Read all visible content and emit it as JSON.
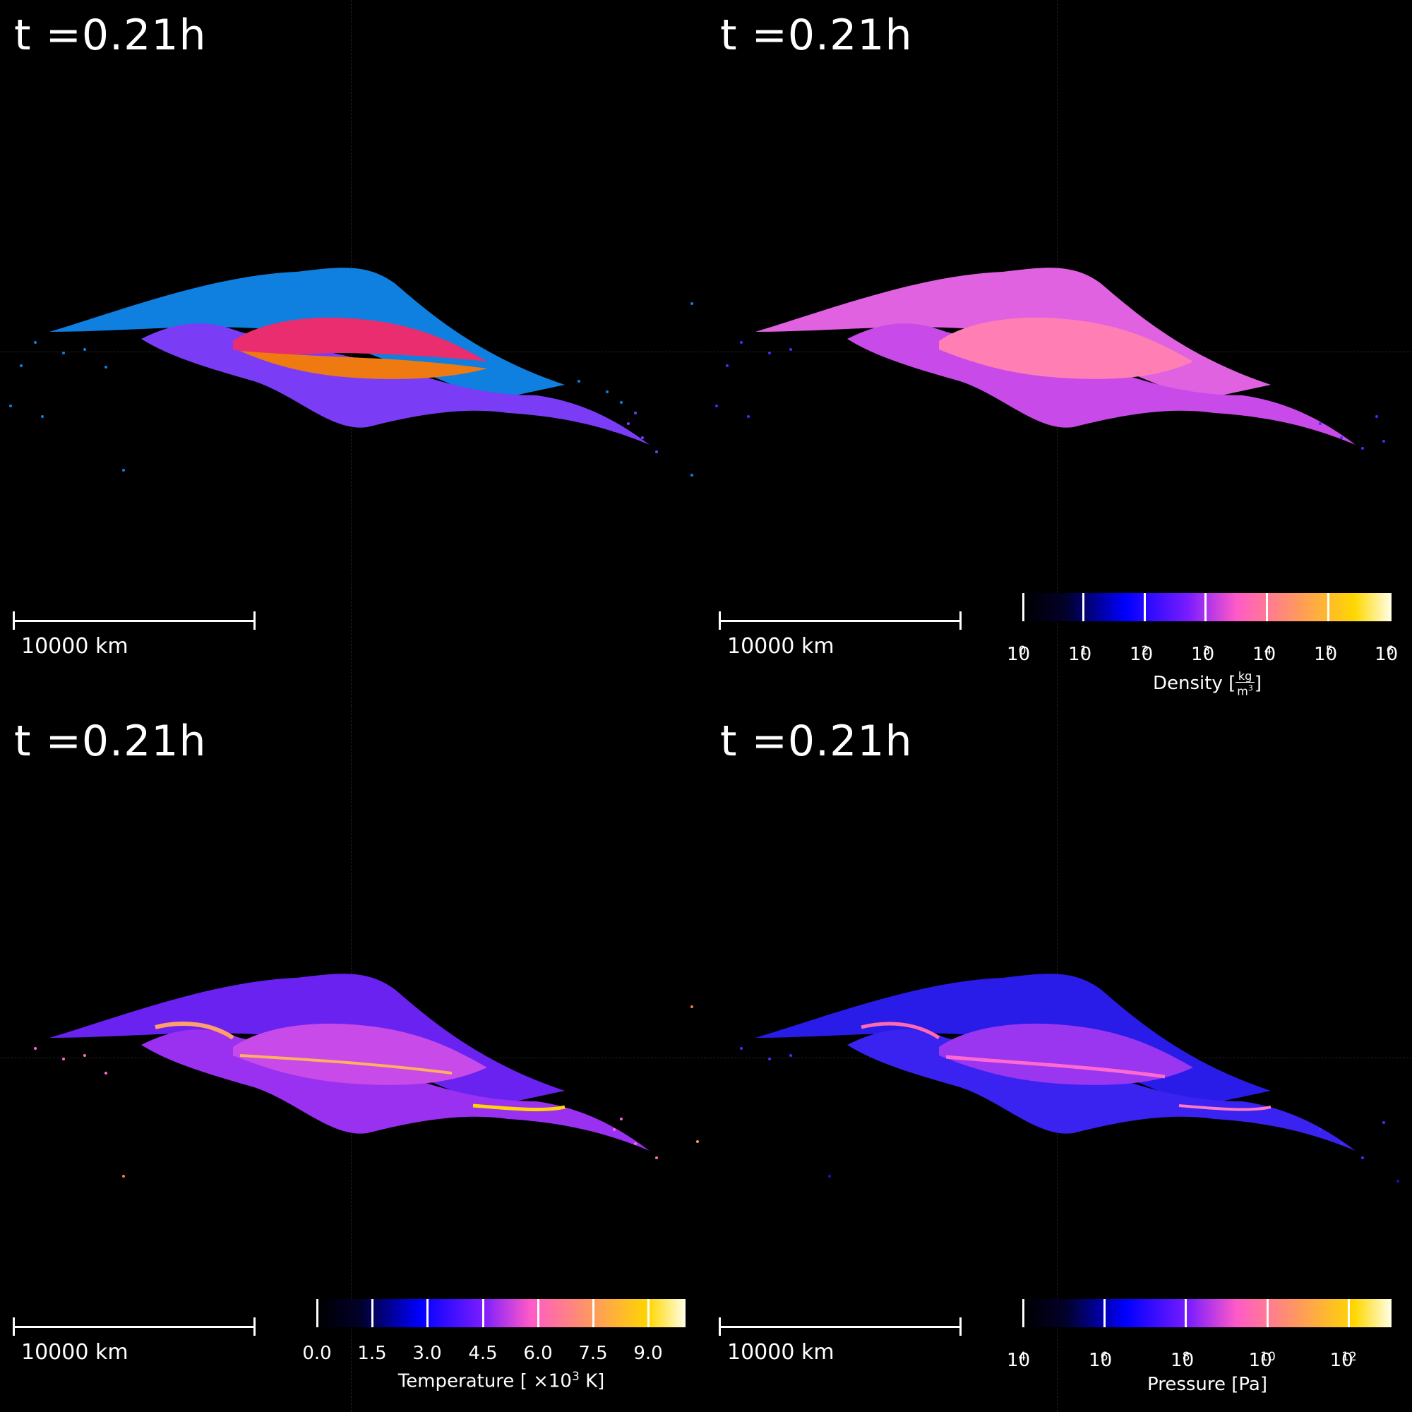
{
  "panels": [
    {
      "id": "material",
      "title": "t =0.21h",
      "scale_label": "10000 km",
      "colors": {
        "mantle": "#0f7fe0",
        "mantle2": "#7b3cf5",
        "core_top": "#ea2d6e",
        "core_bottom": "#ef7a12"
      }
    },
    {
      "id": "density",
      "title": "t =0.21h",
      "scale_label": "10000 km",
      "colorbar": {
        "ticks": [
          "10",
          "10",
          "10",
          "10",
          "10",
          "10",
          "10"
        ],
        "exponents": [
          "0",
          "1",
          "2",
          "3",
          "4",
          "5",
          "6"
        ],
        "label_prefix": "Density [",
        "label_unit_num": "kg",
        "label_unit_den": "m",
        "label_unit_den_exp": "3",
        "label_suffix": "]"
      }
    },
    {
      "id": "temperature",
      "title": "t =0.21h",
      "scale_label": "10000 km",
      "colorbar": {
        "ticks": [
          "0.0",
          "1.5",
          "3.0",
          "4.5",
          "6.0",
          "7.5",
          "9.0"
        ],
        "label": "Temperature [ ×10",
        "label_exp": "3",
        "label_suffix": " K]"
      }
    },
    {
      "id": "pressure",
      "title": "t =0.21h",
      "scale_label": "10000 km",
      "colorbar": {
        "ticks": [
          "10",
          "10",
          "10",
          "10",
          "10"
        ],
        "exponents": [
          "4",
          "6",
          "8",
          "10",
          "12"
        ],
        "label": "Pressure [Pa]"
      }
    }
  ],
  "colormap": [
    "#000000",
    "#02012b",
    "#0000ff",
    "#7a1cff",
    "#ff5ac8",
    "#ff9a5c",
    "#ffd700",
    "#ffffe8"
  ]
}
